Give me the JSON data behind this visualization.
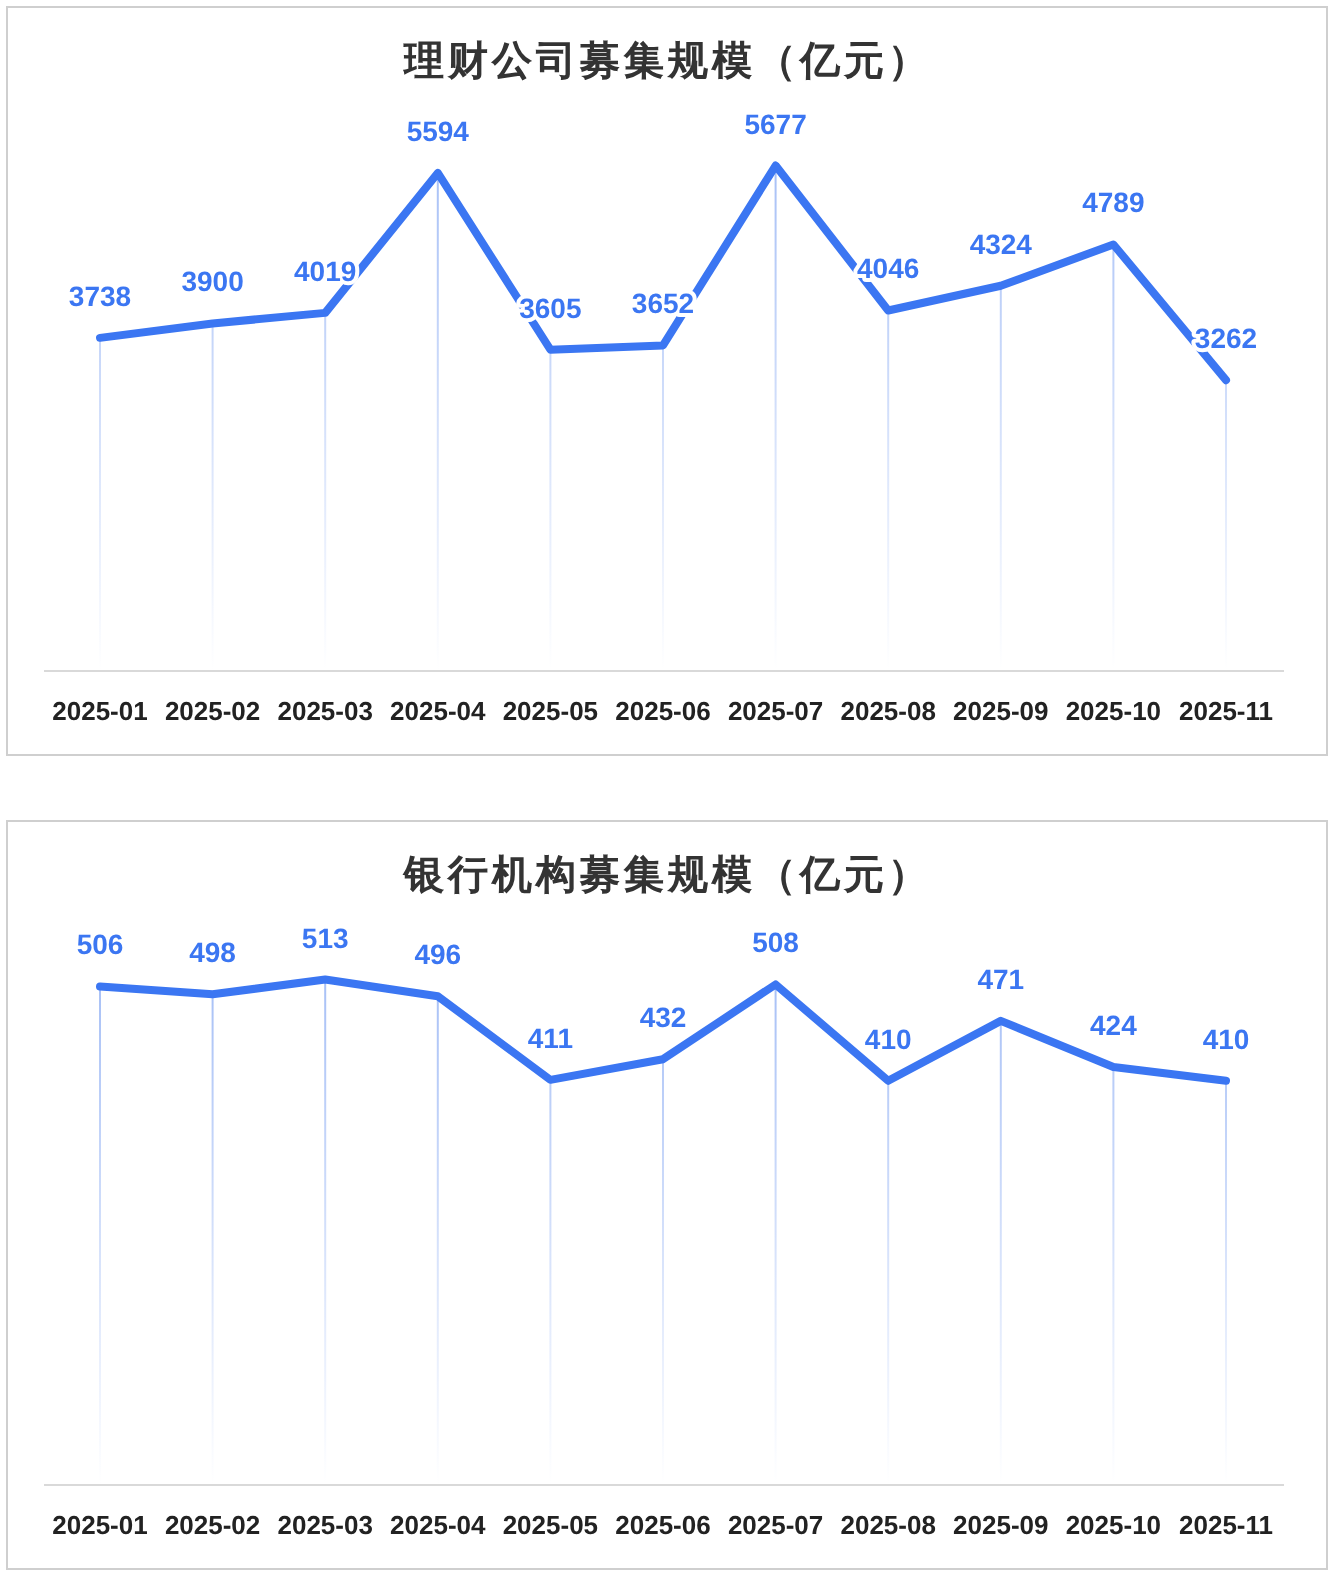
{
  "chart_data": [
    {
      "type": "line",
      "title": "理财公司募集规模（亿元）",
      "categories": [
        "2025-01",
        "2025-02",
        "2025-03",
        "2025-04",
        "2025-05",
        "2025-06",
        "2025-07",
        "2025-08",
        "2025-09",
        "2025-10",
        "2025-11"
      ],
      "series": [
        {
          "color": "#3b76f2",
          "values": [
            3738,
            3900,
            4019,
            5594,
            3605,
            3652,
            5677,
            4046,
            4324,
            4789,
            3262
          ]
        }
      ],
      "data_labels": true,
      "grid": "x",
      "marker": "none"
    },
    {
      "type": "line",
      "title": "银行机构募集规模（亿元）",
      "categories": [
        "2025-01",
        "2025-02",
        "2025-03",
        "2025-04",
        "2025-05",
        "2025-06",
        "2025-07",
        "2025-08",
        "2025-09",
        "2025-10",
        "2025-11"
      ],
      "series": [
        {
          "color": "#3b76f2",
          "values": [
            506,
            498,
            513,
            496,
            411,
            432,
            508,
            410,
            471,
            424,
            410
          ]
        }
      ],
      "data_labels": true,
      "grid": "x",
      "marker": "none"
    }
  ]
}
